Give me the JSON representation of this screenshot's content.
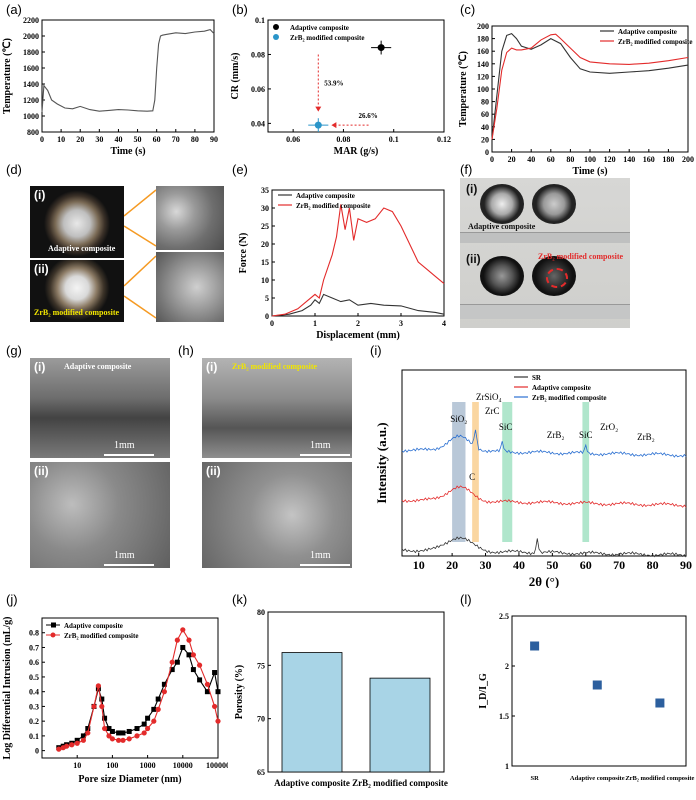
{
  "panels": {
    "a": {
      "label": "(a)",
      "chart_data": {
        "type": "line",
        "xlabel": "Time (s)",
        "ylabel": "Temperature (℃)",
        "xlim": [
          0,
          90
        ],
        "ylim": [
          800,
          2200
        ],
        "xticks": [
          0,
          10,
          20,
          30,
          40,
          50,
          60,
          70,
          80,
          90
        ],
        "yticks": [
          800,
          1000,
          1200,
          1400,
          1600,
          1800,
          2000,
          2200
        ],
        "series": [
          {
            "color": "#555555",
            "x": [
              0,
              1,
              3,
              5,
              8,
              12,
              16,
              20,
              25,
              30,
              35,
              40,
              45,
              50,
              55,
              58,
              59,
              60,
              61,
              62,
              63,
              65,
              70,
              75,
              80,
              85,
              88,
              90
            ],
            "y": [
              1050,
              1380,
              1320,
              1200,
              1150,
              1100,
              1090,
              1120,
              1080,
              1060,
              1070,
              1080,
              1075,
              1065,
              1060,
              1065,
              1200,
              1600,
              1900,
              2000,
              2010,
              2020,
              2040,
              2030,
              2050,
              2060,
              2080,
              2030
            ]
          }
        ]
      }
    },
    "b": {
      "label": "(b)",
      "chart_data": {
        "type": "scatter",
        "xlabel": "MAR (g/s)",
        "ylabel": "CR (mm/s)",
        "xlim": [
          0.05,
          0.12
        ],
        "ylim": [
          0.035,
          0.1
        ],
        "xticks": [
          0.06,
          0.08,
          0.1,
          0.12
        ],
        "yticks": [
          0.04,
          0.06,
          0.08,
          0.1
        ],
        "series": [
          {
            "name": "Adaptive composite",
            "color": "#000000",
            "x": [
              0.095
            ],
            "y": [
              0.084
            ],
            "xerr": [
              0.004
            ],
            "yerr": [
              0.004
            ]
          },
          {
            "name": "ZrB₂ modified composite",
            "color": "#2a95c9",
            "x": [
              0.07
            ],
            "y": [
              0.039
            ],
            "xerr": [
              0.004
            ],
            "yerr": [
              0.004
            ]
          }
        ],
        "annotations": [
          "53.9%",
          "26.6%"
        ]
      }
    },
    "c": {
      "label": "(c)",
      "chart_data": {
        "type": "line",
        "xlabel": "Time (s)",
        "ylabel": "Temperature (℃)",
        "xlim": [
          0,
          200
        ],
        "ylim": [
          0,
          200
        ],
        "xticks": [
          0,
          20,
          40,
          60,
          80,
          100,
          120,
          140,
          160,
          180,
          200
        ],
        "yticks": [
          0,
          20,
          40,
          60,
          80,
          100,
          120,
          140,
          160,
          180,
          200
        ],
        "series": [
          {
            "name": "Adaptive composite",
            "color": "#333333",
            "x": [
              0,
              5,
              10,
              15,
              20,
              25,
              30,
              40,
              50,
              60,
              70,
              80,
              90,
              100,
              120,
              140,
              160,
              180,
              200
            ],
            "y": [
              20,
              90,
              160,
              185,
              188,
              180,
              168,
              163,
              170,
              180,
              172,
              150,
              132,
              127,
              125,
              127,
              129,
              133,
              138
            ]
          },
          {
            "name": "ZrB₂ modified composite",
            "color": "#e32b2b",
            "x": [
              0,
              5,
              10,
              15,
              20,
              25,
              30,
              40,
              50,
              60,
              65,
              70,
              80,
              90,
              100,
              120,
              140,
              160,
              180,
              200
            ],
            "y": [
              20,
              70,
              130,
              158,
              165,
              162,
              162,
              165,
              178,
              186,
              187,
              180,
              165,
              150,
              143,
              140,
              139,
              141,
              145,
              150
            ]
          }
        ]
      }
    },
    "d": {
      "label": "(d)",
      "photo_labels": [
        "(i)",
        "(ii)"
      ],
      "captions": [
        "Adaptive composite",
        "ZrB₂ modified composite"
      ]
    },
    "e": {
      "label": "(e)",
      "chart_data": {
        "type": "line",
        "xlabel": "Displacement (mm)",
        "ylabel": "Force (N)",
        "xlim": [
          0,
          4
        ],
        "ylim": [
          0,
          35
        ],
        "xticks": [
          0,
          1,
          2,
          3,
          4
        ],
        "yticks": [
          0,
          5,
          10,
          15,
          20,
          25,
          30,
          35
        ],
        "series": [
          {
            "name": "Adaptive composite",
            "color": "#333333",
            "x": [
              0,
              0.4,
              0.7,
              0.9,
              1.0,
              1.1,
              1.2,
              1.4,
              1.6,
              1.8,
              2.0,
              2.3,
              2.6,
              3.0,
              3.4,
              3.8,
              4.0
            ],
            "y": [
              0,
              0.5,
              1.5,
              3,
              4.5,
              3.5,
              6,
              5,
              4,
              4.5,
              3,
              3.5,
              3,
              2.8,
              1.5,
              1,
              0.5
            ]
          },
          {
            "name": "ZrB₂ modified composite",
            "color": "#e32b2b",
            "x": [
              0,
              0.3,
              0.6,
              0.8,
              1.0,
              1.1,
              1.2,
              1.4,
              1.5,
              1.6,
              1.7,
              1.8,
              1.9,
              2.0,
              2.2,
              2.4,
              2.6,
              2.8,
              3.0,
              3.2,
              3.4,
              3.6,
              3.8,
              4.0
            ],
            "y": [
              0,
              0.5,
              2,
              4,
              6,
              5,
              10,
              17,
              22,
              31,
              24,
              30,
              21,
              27,
              26,
              27,
              30,
              29,
              25,
              20,
              15,
              13,
              11,
              9
            ]
          }
        ]
      }
    },
    "f": {
      "label": "(f)",
      "photo_labels": [
        "(i)",
        "(ii)"
      ],
      "captions": [
        "Adaptive composite",
        "ZrB₂ modified composite"
      ]
    },
    "g": {
      "label": "(g)",
      "photo_labels": [
        "(i)",
        "(ii)"
      ],
      "caption": "Adaptive composite",
      "scale": "1mm"
    },
    "h": {
      "label": "(h)",
      "photo_labels": [
        "(i)",
        "(ii)"
      ],
      "caption": "ZrB₂ modified composite",
      "scale": "1mm"
    },
    "i": {
      "label": "(i)",
      "chart_data": {
        "type": "line",
        "xlabel": "2θ (°)",
        "ylabel": "Intensity (a.u.)",
        "xlim": [
          5,
          90
        ],
        "xticks": [
          10,
          20,
          30,
          40,
          50,
          60,
          70,
          80,
          90
        ],
        "series": [
          {
            "name": "SR",
            "color": "#333333"
          },
          {
            "name": "Adaptive composite",
            "color": "#e32b2b"
          },
          {
            "name": "ZrB₂ modified composite",
            "color": "#2a6fd1"
          }
        ],
        "annotations": [
          "SiO₂",
          "ZrSiO₄",
          "ZrC",
          "SiC",
          "C",
          "ZrB₂",
          "SiC",
          "ZrO₂",
          "ZrB₂"
        ]
      }
    },
    "j": {
      "label": "(j)",
      "chart_data": {
        "type": "line",
        "xlabel": "Pore size Diameter (nm)",
        "ylabel": "Log Differential Intrusion (mL/g)",
        "xscale": "log",
        "xlim": [
          1,
          100000
        ],
        "ylim": [
          -0.05,
          0.9
        ],
        "xticks": [
          10,
          100,
          1000,
          10000,
          100000
        ],
        "xtick_labels": [
          "10",
          "100",
          "1000",
          "10000",
          "100000"
        ],
        "yticks": [
          0.0,
          0.1,
          0.2,
          0.3,
          0.4,
          0.5,
          0.6,
          0.7,
          0.8
        ],
        "series": [
          {
            "name": "Adaptive composite",
            "color": "#000000",
            "marker": "square",
            "x": [
              3,
              4,
              5,
              7,
              10,
              15,
              20,
              30,
              40,
              50,
              60,
              80,
              100,
              150,
              200,
              300,
              500,
              800,
              1000,
              1500,
              2000,
              3000,
              5000,
              7000,
              10000,
              15000,
              20000,
              30000,
              50000,
              80000,
              100000
            ],
            "y": [
              0.02,
              0.03,
              0.04,
              0.05,
              0.07,
              0.1,
              0.15,
              0.3,
              0.42,
              0.35,
              0.22,
              0.15,
              0.13,
              0.12,
              0.12,
              0.13,
              0.15,
              0.18,
              0.22,
              0.28,
              0.35,
              0.45,
              0.55,
              0.6,
              0.7,
              0.65,
              0.55,
              0.48,
              0.4,
              0.53,
              0.4
            ]
          },
          {
            "name": "ZrB₂ modified composite",
            "color": "#e32b2b",
            "marker": "circle",
            "x": [
              3,
              4,
              5,
              7,
              10,
              15,
              20,
              30,
              40,
              50,
              60,
              80,
              100,
              150,
              200,
              300,
              500,
              800,
              1000,
              1500,
              2000,
              3000,
              5000,
              7000,
              10000,
              15000,
              20000,
              30000,
              50000,
              80000,
              100000
            ],
            "y": [
              0.01,
              0.02,
              0.03,
              0.04,
              0.05,
              0.07,
              0.12,
              0.3,
              0.44,
              0.3,
              0.15,
              0.1,
              0.08,
              0.07,
              0.07,
              0.08,
              0.1,
              0.12,
              0.15,
              0.2,
              0.28,
              0.4,
              0.6,
              0.75,
              0.82,
              0.75,
              0.65,
              0.58,
              0.45,
              0.3,
              0.2
            ]
          }
        ]
      }
    },
    "k": {
      "label": "(k)",
      "chart_data": {
        "type": "bar",
        "xlabel": "",
        "ylabel": "Porosity (%)",
        "categories": [
          "Adaptive composite",
          "ZrB₂ modified composite"
        ],
        "values": [
          76.2,
          73.8
        ],
        "ylim": [
          65,
          80
        ],
        "yticks": [
          65,
          70,
          75,
          80
        ],
        "color": "#a8d4e6"
      }
    },
    "l": {
      "label": "(l)",
      "chart_data": {
        "type": "scatter",
        "xlabel": "",
        "ylabel": "I_D/I_G",
        "categories": [
          "SR",
          "Adaptive composite",
          "ZrB₂ modified composite"
        ],
        "values": [
          2.2,
          1.81,
          1.63
        ],
        "ylim": [
          1.0,
          2.5
        ],
        "yticks": [
          1.0,
          1.5,
          2.0,
          2.5
        ],
        "color": "#2c5f9e"
      }
    }
  }
}
